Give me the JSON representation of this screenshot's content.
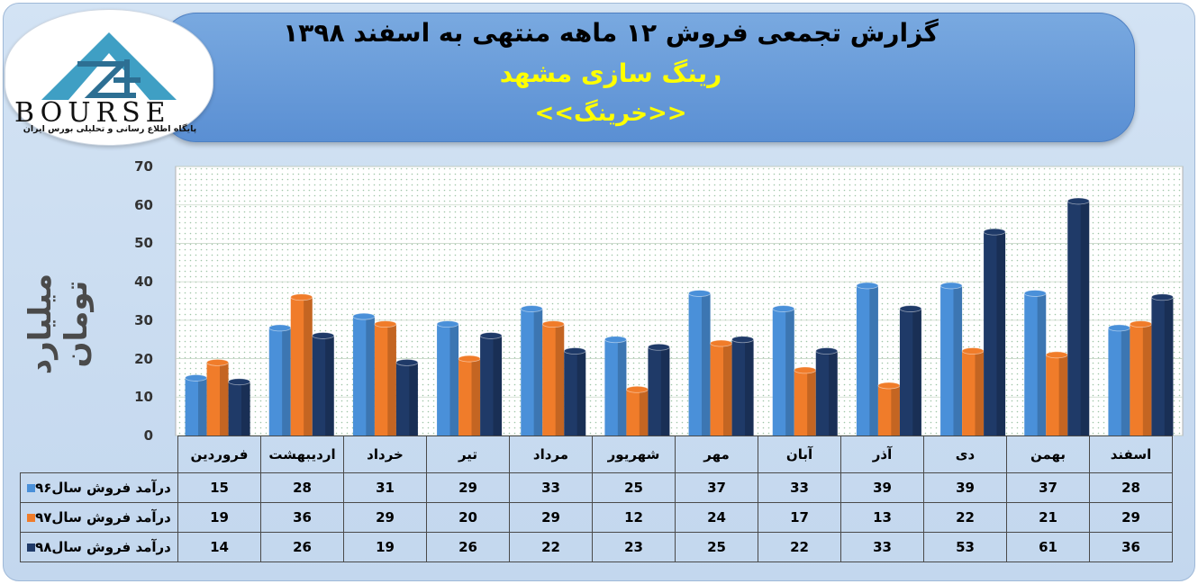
{
  "header": {
    "title": "گزارش تجمعی فروش  ۱۲ ماهه منتهی به اسفند ۱۳۹۸",
    "company": "رینگ سازی مشهد",
    "ticker": "<<خرینگ>>"
  },
  "logo": {
    "word": "BOURSE",
    "subtitle": "پایگاه اطلاع رسانی و تحلیلی بورس ایران"
  },
  "chart_data": {
    "type": "bar",
    "ylabel": "میلیارد تومان",
    "ylim": [
      0,
      70
    ],
    "yticks": [
      "0",
      "10",
      "20",
      "30",
      "40",
      "50",
      "60",
      "70"
    ],
    "grid": true,
    "categories": [
      "فروردین",
      "اردیبهشت",
      "خرداد",
      "تیر",
      "مرداد",
      "شهریور",
      "مهر",
      "آبان",
      "آذر",
      "دی",
      "بهمن",
      "اسفند"
    ],
    "series": [
      {
        "name": "درآمد فروش سال۹۶",
        "color": "#4a90d9",
        "values": [
          15,
          28,
          31,
          29,
          33,
          25,
          37,
          33,
          39,
          39,
          37,
          28
        ]
      },
      {
        "name": "درآمد فروش سال۹۷",
        "color": "#f07c2a",
        "values": [
          19,
          36,
          29,
          20,
          29,
          12,
          24,
          17,
          13,
          22,
          21,
          29
        ]
      },
      {
        "name": "درآمد فروش سال۹۸",
        "color": "#1f3a68",
        "values": [
          14,
          26,
          19,
          26,
          22,
          23,
          25,
          22,
          33,
          53,
          61,
          36
        ]
      }
    ]
  }
}
